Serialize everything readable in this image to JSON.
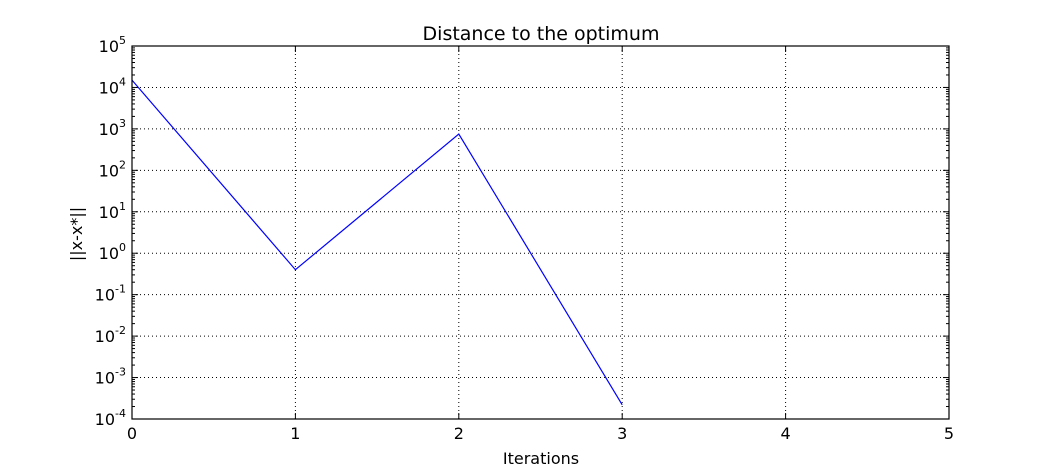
{
  "chart_data": {
    "type": "line",
    "title": "Distance to the optimum",
    "xlabel": "Iterations",
    "ylabel": "||x-x*||",
    "xlim": [
      0,
      5
    ],
    "ylim": [
      0.0001,
      100000
    ],
    "yscale": "log",
    "grid": true,
    "x_ticks": [
      "0",
      "1",
      "2",
      "3",
      "4",
      "5"
    ],
    "y_ticks": [
      {
        "base": "10",
        "exp": "5"
      },
      {
        "base": "10",
        "exp": "4"
      },
      {
        "base": "10",
        "exp": "3"
      },
      {
        "base": "10",
        "exp": "2"
      },
      {
        "base": "10",
        "exp": "1"
      },
      {
        "base": "10",
        "exp": "0"
      },
      {
        "base": "10",
        "exp": "-1"
      },
      {
        "base": "10",
        "exp": "-2"
      },
      {
        "base": "10",
        "exp": "-3"
      },
      {
        "base": "10",
        "exp": "-4"
      }
    ],
    "series": [
      {
        "color": "#0000ff",
        "x": [
          0,
          1,
          2,
          3
        ],
        "y": [
          15000,
          0.4,
          750,
          0.00022
        ]
      }
    ]
  }
}
